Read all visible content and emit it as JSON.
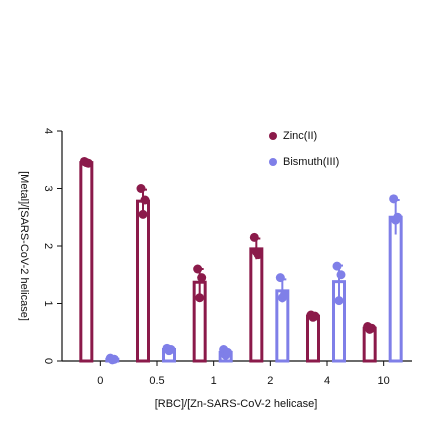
{
  "chart_data": {
    "type": "bar",
    "categories": [
      "0",
      "0.5",
      "1",
      "2",
      "4",
      "10"
    ],
    "xlabel": "[RBC]/[Zn-SARS-CoV-2 helicase]",
    "ylabel": "[Metal]/[SARS-CoV-2 helicase]",
    "ylim": [
      0,
      4
    ],
    "yticks": [
      0,
      1,
      2,
      3,
      4
    ],
    "legend": "upper right",
    "series": [
      {
        "name": "Zinc(II)",
        "color": "#8b1a4a",
        "values": [
          3.45,
          2.78,
          1.37,
          1.95,
          0.78,
          0.57
        ],
        "errors": [
          0.02,
          0.2,
          0.23,
          0.18,
          0.03,
          0.05
        ],
        "points": [
          [
            3.47,
            3.45,
            3.44
          ],
          [
            3.0,
            2.55,
            2.8
          ],
          [
            1.6,
            1.1,
            1.45
          ],
          [
            2.15,
            1.9,
            1.85
          ],
          [
            0.8,
            0.76,
            0.78
          ],
          [
            0.6,
            0.55,
            0.57
          ]
        ]
      },
      {
        "name": "Bismuth(III)",
        "color": "#7f7fe8",
        "values": [
          0.03,
          0.2,
          0.15,
          1.22,
          1.38,
          2.5
        ],
        "errors": [
          0.02,
          0.03,
          0.05,
          0.2,
          0.28,
          0.3
        ],
        "points": [
          [
            0.05,
            0.02,
            0.03
          ],
          [
            0.22,
            0.18,
            0.2
          ],
          [
            0.2,
            0.1,
            0.15
          ],
          [
            1.45,
            1.1,
            1.15
          ],
          [
            1.65,
            1.05,
            1.5
          ],
          [
            2.82,
            2.45,
            2.5
          ]
        ]
      }
    ]
  }
}
